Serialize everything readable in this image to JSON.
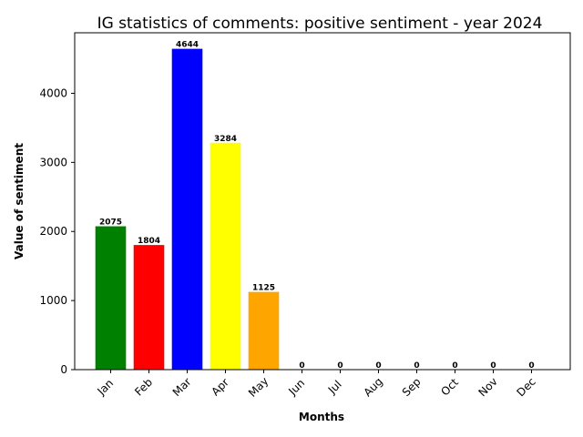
{
  "chart_data": {
    "type": "bar",
    "title": "IG statistics of comments: positive sentiment - year 2024",
    "xlabel": "Months",
    "ylabel": "Value of sentiment",
    "categories": [
      "Jan",
      "Feb",
      "Mar",
      "Apr",
      "May",
      "Jun",
      "Jul",
      "Aug",
      "Sep",
      "Oct",
      "Nov",
      "Dec"
    ],
    "values": [
      2075,
      1804,
      4644,
      3284,
      1125,
      0,
      0,
      0,
      0,
      0,
      0,
      0
    ],
    "colors": [
      "#008000",
      "#ff0000",
      "#0000ff",
      "#ffff00",
      "#ffa500",
      "#808080",
      "#808080",
      "#808080",
      "#808080",
      "#808080",
      "#808080",
      "#808080"
    ],
    "ylim": [
      0,
      4876
    ],
    "yticks": [
      0,
      1000,
      2000,
      3000,
      4000
    ],
    "grid": false,
    "legend": "none"
  }
}
